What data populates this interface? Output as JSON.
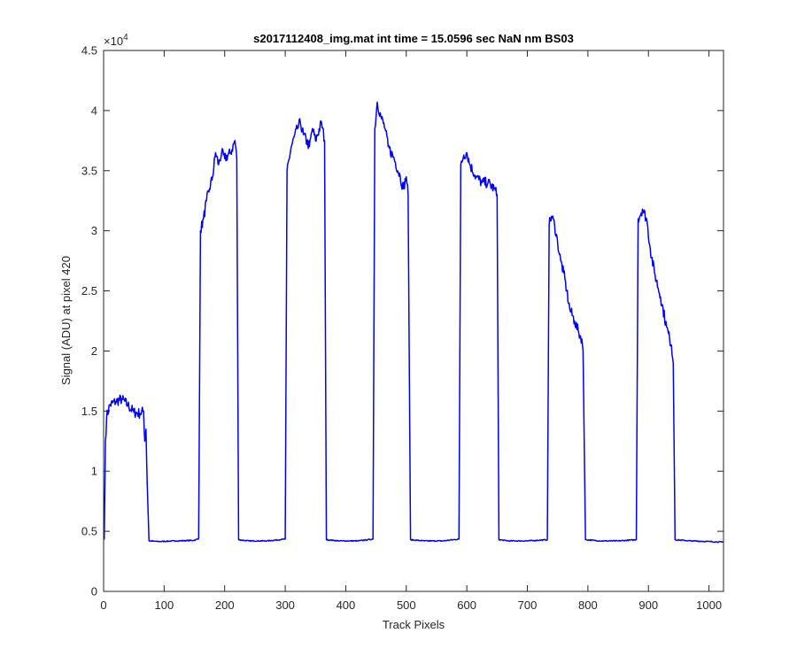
{
  "chart_data": {
    "type": "line",
    "title": "s2017112408_img.mat int time = 15.0596 sec  NaN nm BS03",
    "xlabel": "Track Pixels",
    "ylabel": "Signal (ADU) at pixel 420",
    "xlim": [
      0,
      1024
    ],
    "ylim": [
      0,
      45000
    ],
    "x_ticks": [
      0,
      100,
      200,
      300,
      400,
      500,
      600,
      700,
      800,
      900,
      1000
    ],
    "x_tick_labels": [
      "0",
      "100",
      "200",
      "300",
      "400",
      "500",
      "600",
      "700",
      "800",
      "900",
      "1000"
    ],
    "y_ticks": [
      0,
      5000,
      10000,
      15000,
      20000,
      25000,
      30000,
      35000,
      40000,
      45000
    ],
    "y_tick_labels": [
      "0",
      "0.5",
      "1",
      "1.5",
      "2",
      "2.5",
      "3",
      "3.5",
      "4",
      "4.5"
    ],
    "y_exponent_label": "×10",
    "y_exponent_power": "4",
    "grid": false,
    "line_color": "#0000ff",
    "series": [
      {
        "points": [
          [
            1,
            4300
          ],
          [
            3,
            12500
          ],
          [
            5,
            14500
          ],
          [
            10,
            15500
          ],
          [
            20,
            15800
          ],
          [
            30,
            16000
          ],
          [
            40,
            15500
          ],
          [
            50,
            14900
          ],
          [
            60,
            14800
          ],
          [
            66,
            15000
          ],
          [
            68,
            12500
          ],
          [
            70,
            13500
          ],
          [
            72,
            9000
          ],
          [
            75,
            4200
          ],
          [
            90,
            4150
          ],
          [
            120,
            4200
          ],
          [
            150,
            4250
          ],
          [
            157,
            4400
          ],
          [
            160,
            30000
          ],
          [
            165,
            31000
          ],
          [
            170,
            32500
          ],
          [
            175,
            33500
          ],
          [
            180,
            34500
          ],
          [
            185,
            36500
          ],
          [
            190,
            35500
          ],
          [
            195,
            36500
          ],
          [
            200,
            36000
          ],
          [
            210,
            36500
          ],
          [
            217,
            37500
          ],
          [
            220,
            36000
          ],
          [
            223,
            4300
          ],
          [
            240,
            4200
          ],
          [
            270,
            4200
          ],
          [
            300,
            4350
          ],
          [
            303,
            35000
          ],
          [
            310,
            37000
          ],
          [
            320,
            38500
          ],
          [
            325,
            39000
          ],
          [
            330,
            38000
          ],
          [
            340,
            37000
          ],
          [
            345,
            38500
          ],
          [
            350,
            37500
          ],
          [
            360,
            39000
          ],
          [
            365,
            37500
          ],
          [
            368,
            4300
          ],
          [
            390,
            4200
          ],
          [
            420,
            4200
          ],
          [
            445,
            4350
          ],
          [
            448,
            38500
          ],
          [
            452,
            40700
          ],
          [
            458,
            39500
          ],
          [
            465,
            38500
          ],
          [
            470,
            37000
          ],
          [
            480,
            36000
          ],
          [
            490,
            34500
          ],
          [
            495,
            33500
          ],
          [
            500,
            34500
          ],
          [
            503,
            33000
          ],
          [
            507,
            4300
          ],
          [
            530,
            4200
          ],
          [
            560,
            4200
          ],
          [
            587,
            4350
          ],
          [
            590,
            35500
          ],
          [
            595,
            36300
          ],
          [
            600,
            36500
          ],
          [
            605,
            35500
          ],
          [
            615,
            34500
          ],
          [
            625,
            34000
          ],
          [
            635,
            34000
          ],
          [
            645,
            33500
          ],
          [
            650,
            33000
          ],
          [
            653,
            4300
          ],
          [
            670,
            4200
          ],
          [
            700,
            4200
          ],
          [
            733,
            4300
          ],
          [
            736,
            30500
          ],
          [
            740,
            31200
          ],
          [
            745,
            30500
          ],
          [
            750,
            29000
          ],
          [
            755,
            27500
          ],
          [
            760,
            26500
          ],
          [
            765,
            25000
          ],
          [
            770,
            23500
          ],
          [
            778,
            22500
          ],
          [
            785,
            21500
          ],
          [
            790,
            21000
          ],
          [
            792,
            20000
          ],
          [
            796,
            4300
          ],
          [
            820,
            4200
          ],
          [
            850,
            4200
          ],
          [
            880,
            4300
          ],
          [
            883,
            31000
          ],
          [
            890,
            31800
          ],
          [
            897,
            31000
          ],
          [
            903,
            28500
          ],
          [
            910,
            26500
          ],
          [
            920,
            24500
          ],
          [
            930,
            22000
          ],
          [
            935,
            21000
          ],
          [
            938,
            20500
          ],
          [
            941,
            19000
          ],
          [
            944,
            4300
          ],
          [
            970,
            4200
          ],
          [
            1000,
            4150
          ],
          [
            1024,
            4100
          ]
        ]
      }
    ]
  }
}
